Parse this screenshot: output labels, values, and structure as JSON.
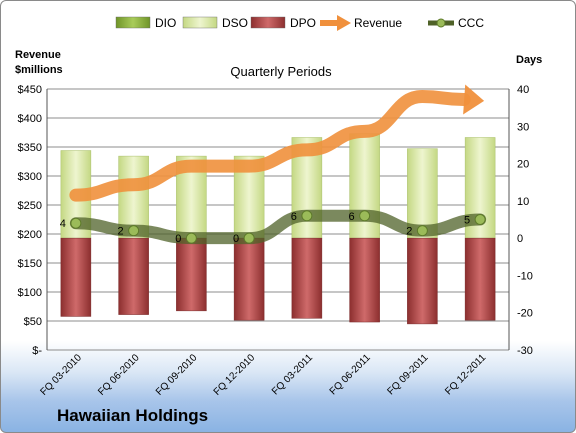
{
  "caption": "Hawaiian Holdings",
  "chart_data": {
    "type": "bar",
    "title": "Quarterly Periods",
    "left_axis_label": "Revenue\n$millions",
    "right_axis_label": "Days",
    "categories": [
      "FQ 03-2010",
      "FQ 06-2010",
      "FQ 09-2010",
      "FQ 12-2010",
      "FQ 03-2011",
      "FQ 06-2011",
      "FQ 09-2011",
      "FQ 12-2011"
    ],
    "left_ticks": [
      "$-",
      "$50",
      "$100",
      "$150",
      "$200",
      "$250",
      "$300",
      "$350",
      "$400",
      "$450"
    ],
    "right_ticks": [
      "-30",
      "-20",
      "-10",
      "0",
      "10",
      "20",
      "30",
      "40"
    ],
    "ylim_left": [
      0,
      450
    ],
    "ylim_right": [
      -30,
      40
    ],
    "legend_position": "top",
    "legend": [
      {
        "name": "DIO",
        "kind": "bar",
        "color": "#8db33f"
      },
      {
        "name": "DSO",
        "kind": "bar",
        "color": "#d7e6a4"
      },
      {
        "name": "DPO",
        "kind": "bar",
        "color": "#b34a4a"
      },
      {
        "name": "Revenue",
        "kind": "arrow",
        "color": "#f0903c"
      },
      {
        "name": "CCC",
        "kind": "line",
        "color": "#4f6228"
      }
    ],
    "series": [
      {
        "name": "DIO",
        "axis": "right",
        "values": [
          0,
          0,
          0,
          0,
          0,
          0,
          0,
          0
        ]
      },
      {
        "name": "DSO",
        "axis": "right",
        "values": [
          23.5,
          22,
          22,
          22,
          27,
          28,
          24,
          27
        ]
      },
      {
        "name": "DPO",
        "axis": "right",
        "values": [
          -21,
          -20.5,
          -19.5,
          -22,
          -21.5,
          -22.5,
          -23,
          -22
        ]
      },
      {
        "name": "Revenue",
        "axis": "left",
        "values": [
          267,
          285,
          317,
          317,
          345,
          377,
          437,
          430
        ]
      },
      {
        "name": "CCC",
        "axis": "right",
        "values": [
          4,
          2,
          0,
          0,
          6,
          6,
          2,
          5
        ]
      }
    ],
    "ccc_labels": [
      "4",
      "2",
      "0",
      "0",
      "6",
      "6",
      "2",
      "5"
    ],
    "colors": {
      "dio": "#8db33f",
      "dso": "#d7e6a4",
      "dpo": "#b34a4a",
      "revenue": "#f0903c",
      "ccc": "#4f6228",
      "grid": "#8c8c8c"
    }
  }
}
